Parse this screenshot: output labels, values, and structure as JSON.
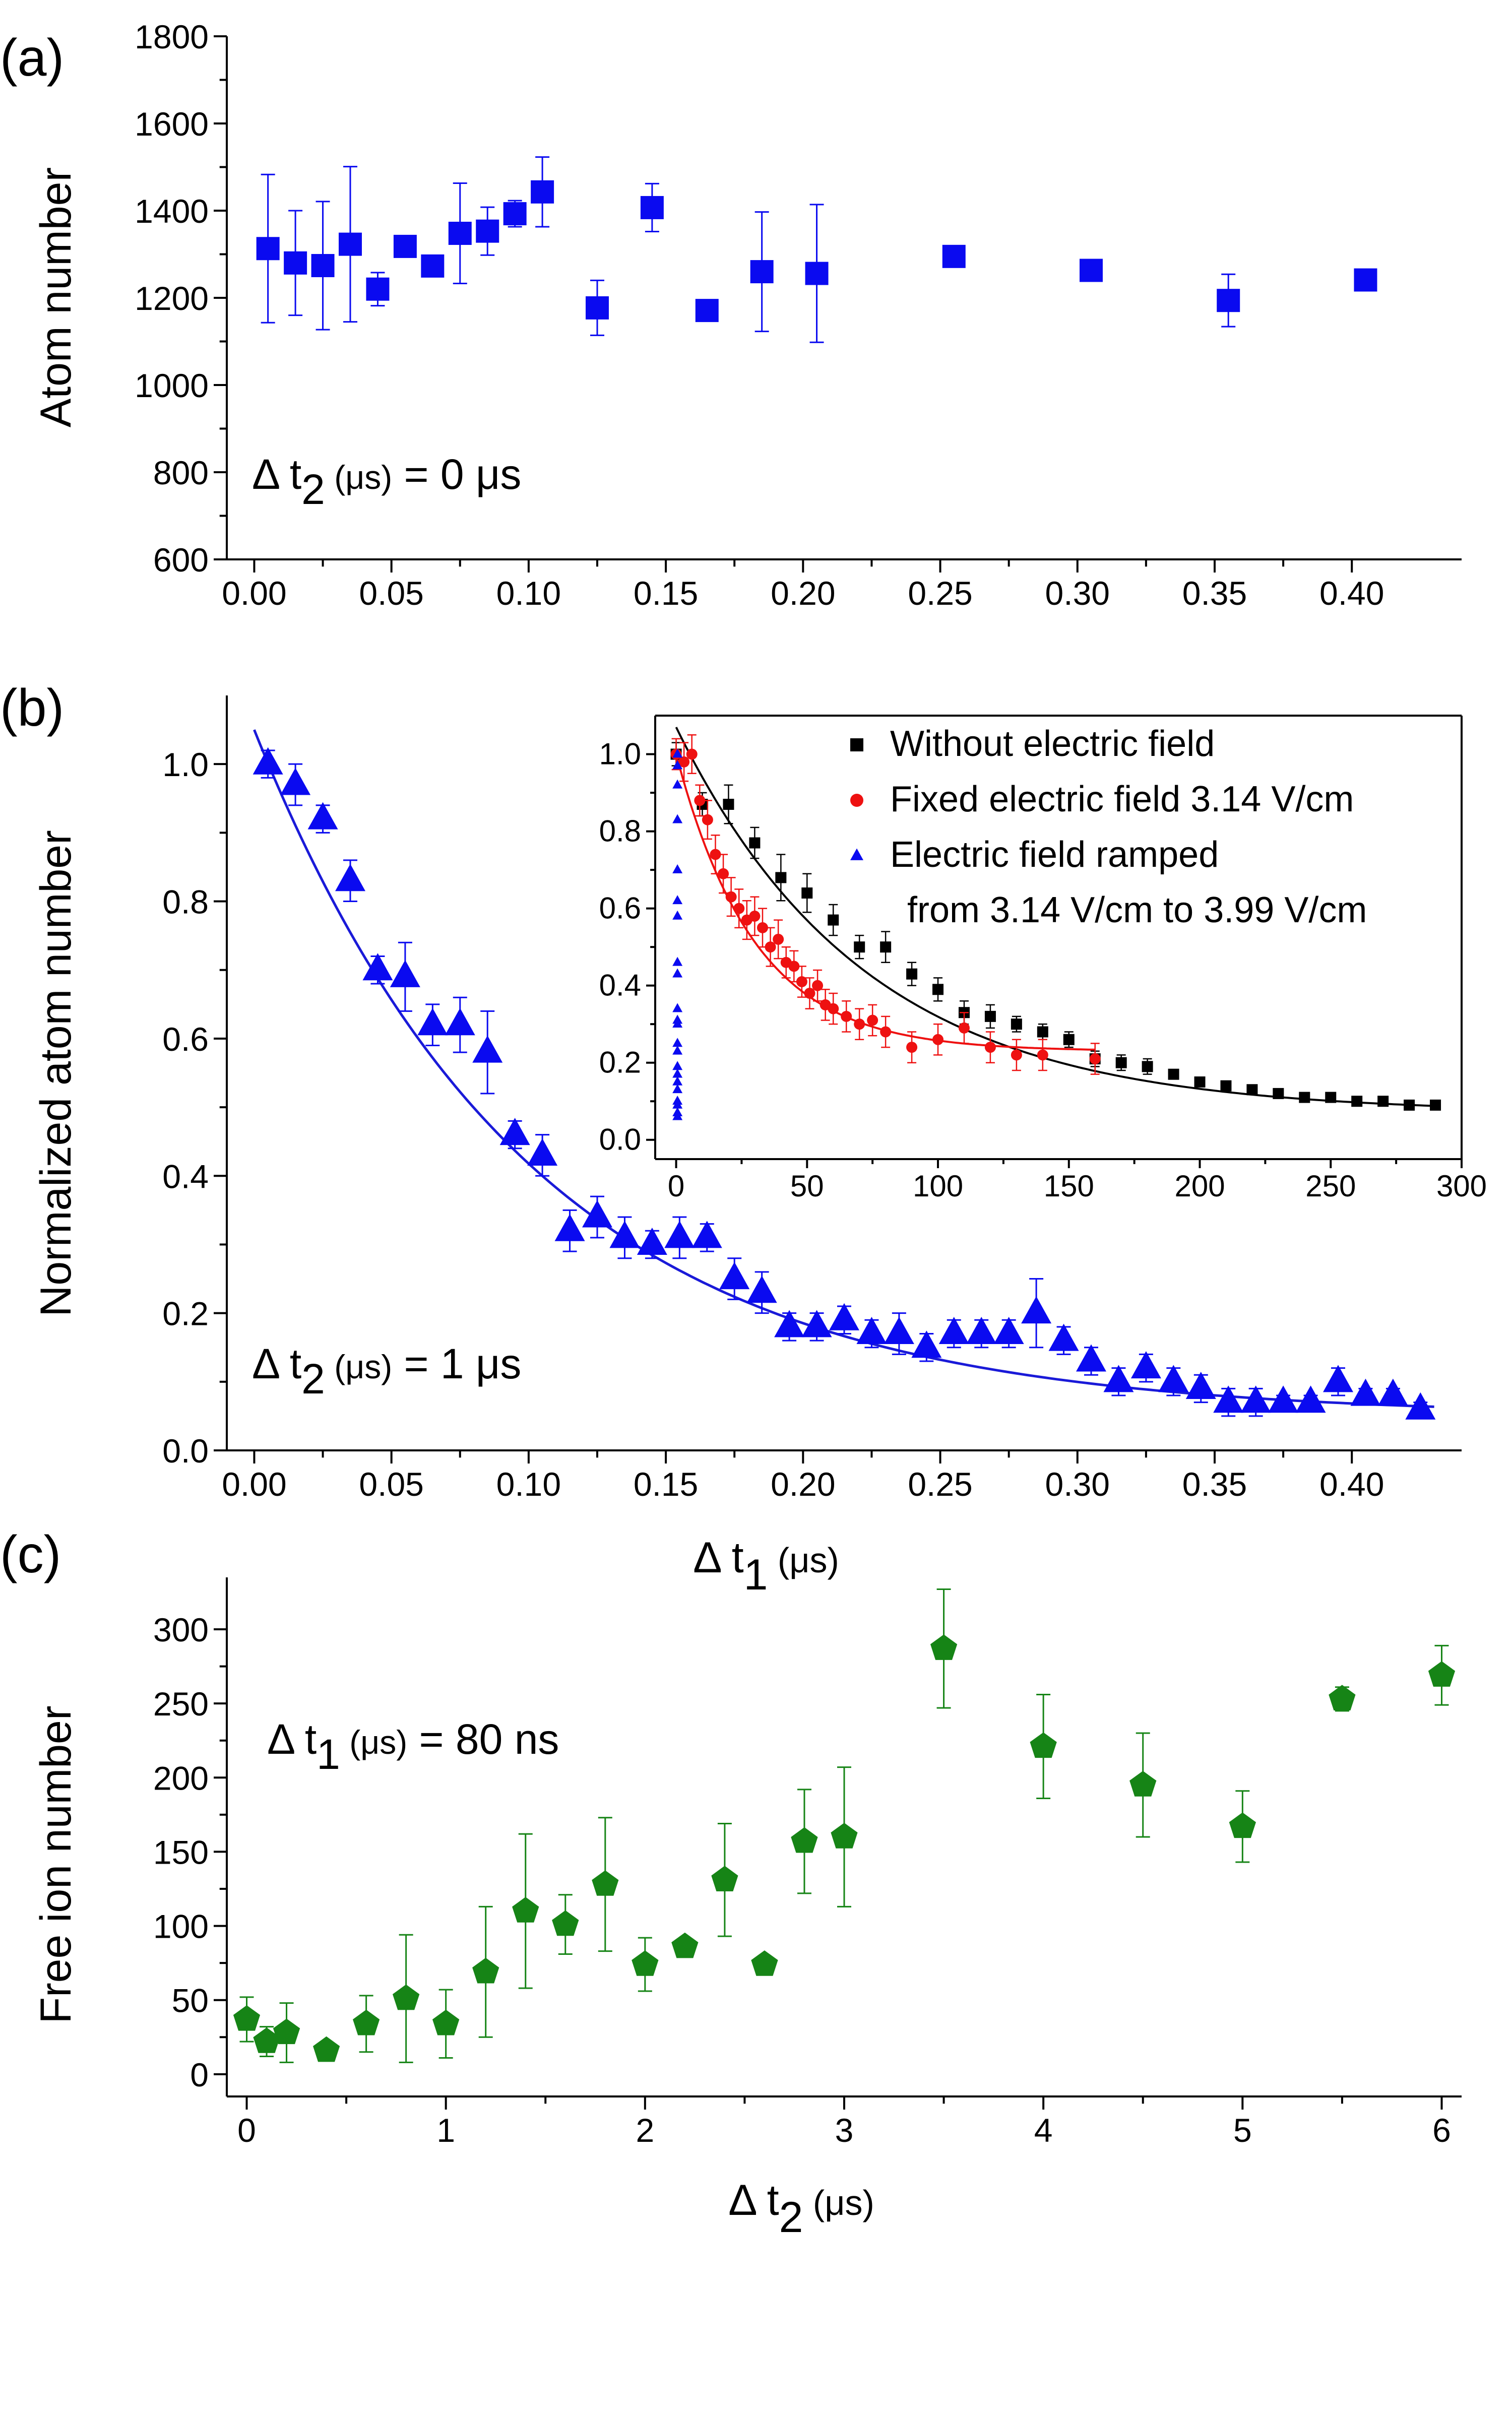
{
  "chart_data": [
    {
      "type": "scatter",
      "panel_label": "(a)",
      "ylabel": "Atom number",
      "xlabel": "",
      "xlim": [
        -0.01,
        0.44
      ],
      "ylim": [
        600,
        1800
      ],
      "x_ticks": [
        0.0,
        0.05,
        0.1,
        0.15,
        0.2,
        0.25,
        0.3,
        0.35,
        0.4
      ],
      "x_tick_labels": [
        "0.00",
        "0.05",
        "0.10",
        "0.15",
        "0.20",
        "0.25",
        "0.30",
        "0.35",
        "0.40"
      ],
      "y_ticks": [
        600,
        800,
        1000,
        1200,
        1400,
        1600,
        1800
      ],
      "y_tick_labels": [
        "600",
        "800",
        "1000",
        "1200",
        "1400",
        "1600",
        "1800"
      ],
      "annotation": {
        "prefix": "Δ t",
        "sub": "2",
        "unit": " (μs)",
        "value": " = 0 μs"
      },
      "series": [
        {
          "name": "Atom number",
          "marker": "square",
          "color": "#0a0af0",
          "x": [
            0.005,
            0.015,
            0.025,
            0.035,
            0.045,
            0.055,
            0.065,
            0.075,
            0.085,
            0.095,
            0.105,
            0.125,
            0.145,
            0.165,
            0.185,
            0.205,
            0.255,
            0.305,
            0.355,
            0.405
          ],
          "y": [
            1313,
            1280,
            1274,
            1323,
            1220,
            1318,
            1273,
            1348,
            1353,
            1393,
            1443,
            1177,
            1407,
            1171,
            1260,
            1256,
            1295,
            1263,
            1194,
            1241
          ],
          "err": [
            170,
            120,
            147,
            178,
            38,
            0,
            20,
            115,
            55,
            30,
            80,
            63,
            55,
            0,
            137,
            158,
            0,
            0,
            60,
            0
          ]
        }
      ]
    },
    {
      "type": "scatter",
      "panel_label": "(b)",
      "ylabel": "Normalized atom number",
      "xlabel_prefix": "Δ t",
      "xlabel_sub": "1",
      "xlabel_unit": " (μs)",
      "xlim": [
        -0.01,
        0.44
      ],
      "ylim": [
        0.0,
        1.1
      ],
      "x_ticks": [
        0.0,
        0.05,
        0.1,
        0.15,
        0.2,
        0.25,
        0.3,
        0.35,
        0.4
      ],
      "x_tick_labels": [
        "0.00",
        "0.05",
        "0.10",
        "0.15",
        "0.20",
        "0.25",
        "0.30",
        "0.35",
        "0.40"
      ],
      "y_ticks": [
        0.0,
        0.2,
        0.4,
        0.6,
        0.8,
        1.0
      ],
      "y_tick_labels": [
        "0.0",
        "0.2",
        "0.4",
        "0.6",
        "0.8",
        "1.0"
      ],
      "annotation": {
        "prefix": "Δ t",
        "sub": "2",
        "unit": " (μs)",
        "value": " = 1 μs"
      },
      "series": [
        {
          "name": "Normalized atom number",
          "marker": "triangle",
          "color": "#0a0af0",
          "x": [
            0.005,
            0.015,
            0.025,
            0.035,
            0.045,
            0.055,
            0.065,
            0.075,
            0.085,
            0.095,
            0.105,
            0.115,
            0.125,
            0.135,
            0.145,
            0.155,
            0.165,
            0.175,
            0.185,
            0.195,
            0.205,
            0.215,
            0.225,
            0.235,
            0.245,
            0.255,
            0.265,
            0.275,
            0.285,
            0.295,
            0.305,
            0.315,
            0.325,
            0.335,
            0.345,
            0.355,
            0.365,
            0.375,
            0.385,
            0.395,
            0.405,
            0.415,
            0.425
          ],
          "y": [
            1.0,
            0.97,
            0.92,
            0.83,
            0.7,
            0.69,
            0.62,
            0.62,
            0.58,
            0.46,
            0.43,
            0.32,
            0.34,
            0.31,
            0.3,
            0.31,
            0.31,
            0.25,
            0.23,
            0.18,
            0.18,
            0.19,
            0.17,
            0.17,
            0.15,
            0.17,
            0.17,
            0.17,
            0.2,
            0.16,
            0.13,
            0.1,
            0.12,
            0.1,
            0.09,
            0.07,
            0.07,
            0.07,
            0.07,
            0.1,
            0.08,
            0.08,
            0.06
          ],
          "err": [
            0.02,
            0.03,
            0.02,
            0.03,
            0.02,
            0.05,
            0.03,
            0.04,
            0.06,
            0.02,
            0.03,
            0.03,
            0.03,
            0.03,
            0.02,
            0.03,
            0.02,
            0.03,
            0.03,
            0.02,
            0.02,
            0.02,
            0.02,
            0.03,
            0.02,
            0.02,
            0.02,
            0.02,
            0.05,
            0.02,
            0.02,
            0.02,
            0.02,
            0.02,
            0.02,
            0.02,
            0.02,
            0.01,
            0.01,
            0.02,
            0.01,
            0.01,
            0.01
          ]
        }
      ],
      "fit": {
        "color": "#1a1ad8",
        "a": 1.0,
        "tau": 0.1,
        "c": 0.05,
        "x_range": [
          0.0,
          0.43
        ]
      },
      "inset": {
        "xlim": [
          -8,
          300
        ],
        "ylim": [
          -0.05,
          1.1
        ],
        "x_ticks": [
          0,
          50,
          100,
          150,
          200,
          250,
          300
        ],
        "x_tick_labels": [
          "0",
          "50",
          "100",
          "150",
          "200",
          "250",
          "300"
        ],
        "y_ticks": [
          0.0,
          0.2,
          0.4,
          0.6,
          0.8,
          1.0
        ],
        "y_tick_labels": [
          "0.0",
          "0.2",
          "0.4",
          "0.6",
          "0.8",
          "1.0"
        ],
        "legend": {
          "entries": [
            "Without electric field",
            "Fixed electric field 3.14 V/cm",
            "Electric field ramped"
          ],
          "continuation": "from 3.14 V/cm to 3.99 V/cm"
        },
        "series": [
          {
            "name": "Without electric field",
            "marker": "square",
            "color": "#000000",
            "x": [
              0,
              10,
              20,
              30,
              40,
              50,
              60,
              70,
              80,
              90,
              100,
              110,
              120,
              130,
              140,
              150,
              160,
              170,
              180,
              190,
              200,
              210,
              220,
              230,
              240,
              250,
              260,
              270,
              280,
              290
            ],
            "y": [
              1.0,
              0.87,
              0.87,
              0.77,
              0.68,
              0.64,
              0.57,
              0.5,
              0.5,
              0.43,
              0.39,
              0.33,
              0.32,
              0.3,
              0.28,
              0.26,
              0.21,
              0.2,
              0.19,
              0.17,
              0.15,
              0.14,
              0.13,
              0.12,
              0.11,
              0.11,
              0.1,
              0.1,
              0.09,
              0.09
            ],
            "err": [
              0.03,
              0.03,
              0.05,
              0.04,
              0.06,
              0.05,
              0.04,
              0.03,
              0.04,
              0.03,
              0.03,
              0.03,
              0.03,
              0.02,
              0.02,
              0.02,
              0.02,
              0.02,
              0.02,
              0.01,
              0.01,
              0.01,
              0.01,
              0.01,
              0.01,
              0.01,
              0.01,
              0.01,
              0.01,
              0.01
            ]
          },
          {
            "name": "Fixed electric field 3.14 V/cm",
            "marker": "circle",
            "color": "#ee1111",
            "x": [
              0,
              3,
              6,
              9,
              12,
              15,
              18,
              21,
              24,
              27,
              30,
              33,
              36,
              39,
              42,
              45,
              48,
              51,
              54,
              57,
              60,
              65,
              70,
              75,
              80,
              90,
              100,
              110,
              120,
              130,
              140,
              160
            ],
            "y": [
              1.0,
              0.98,
              1.0,
              0.88,
              0.83,
              0.74,
              0.69,
              0.63,
              0.6,
              0.57,
              0.58,
              0.55,
              0.5,
              0.52,
              0.46,
              0.45,
              0.41,
              0.38,
              0.4,
              0.35,
              0.34,
              0.32,
              0.3,
              0.31,
              0.28,
              0.24,
              0.26,
              0.29,
              0.24,
              0.22,
              0.22,
              0.21
            ],
            "err": [
              0.04,
              0.05,
              0.05,
              0.04,
              0.05,
              0.05,
              0.05,
              0.05,
              0.05,
              0.05,
              0.05,
              0.05,
              0.05,
              0.05,
              0.04,
              0.04,
              0.04,
              0.04,
              0.04,
              0.04,
              0.04,
              0.04,
              0.04,
              0.04,
              0.04,
              0.04,
              0.04,
              0.04,
              0.04,
              0.04,
              0.04,
              0.04
            ]
          },
          {
            "name": "Electric field ramped",
            "marker": "triangle",
            "color": "#0a0af0",
            "x": [
              0.5,
              0.5,
              0.5,
              0.5,
              0.5,
              0.5,
              0.5,
              0.5,
              0.5,
              0.5,
              0.5,
              0.5,
              0.5,
              0.5,
              0.5,
              0.5,
              0.5,
              0.5,
              0.5,
              0.5,
              0.5,
              0.5
            ],
            "y": [
              1.0,
              0.97,
              0.92,
              0.83,
              0.7,
              0.62,
              0.58,
              0.46,
              0.43,
              0.34,
              0.31,
              0.3,
              0.25,
              0.23,
              0.19,
              0.17,
              0.15,
              0.13,
              0.1,
              0.09,
              0.07,
              0.06
            ],
            "err": [
              0,
              0,
              0,
              0,
              0,
              0,
              0,
              0,
              0,
              0,
              0,
              0,
              0,
              0,
              0,
              0,
              0,
              0,
              0,
              0,
              0,
              0
            ]
          }
        ],
        "fits": [
          {
            "color": "#000000",
            "a": 1.0,
            "tau": 72,
            "c": 0.07,
            "x_range": [
              0,
              290
            ]
          },
          {
            "color": "#ee1111",
            "a": 0.77,
            "tau": 30,
            "c": 0.23,
            "x_range": [
              0,
              160
            ]
          }
        ]
      }
    },
    {
      "type": "scatter",
      "panel_label": "(c)",
      "ylabel": "Free ion number",
      "xlabel_prefix": "Δ t",
      "xlabel_sub": "2",
      "xlabel_unit": " (μs)",
      "xlim": [
        -0.1,
        6.1
      ],
      "ylim": [
        -15,
        335
      ],
      "x_ticks": [
        0,
        1,
        2,
        3,
        4,
        5,
        6
      ],
      "x_tick_labels": [
        "0",
        "1",
        "2",
        "3",
        "4",
        "5",
        "6"
      ],
      "y_ticks": [
        0,
        50,
        100,
        150,
        200,
        250,
        300
      ],
      "y_tick_labels": [
        "0",
        "50",
        "100",
        "150",
        "200",
        "250",
        "300"
      ],
      "annotation": {
        "prefix": "Δ t",
        "sub": "1",
        "unit": " (μs)",
        "value": " = 80 ns"
      },
      "series": [
        {
          "name": "Free ion number",
          "marker": "pentagon",
          "color": "#168416",
          "x": [
            0.0,
            0.1,
            0.2,
            0.4,
            0.6,
            0.8,
            1.0,
            1.2,
            1.4,
            1.6,
            1.8,
            2.0,
            2.2,
            2.4,
            2.6,
            2.8,
            3.0,
            3.5,
            4.0,
            4.5,
            5.0,
            5.5,
            6.0
          ],
          "y": [
            37,
            22,
            28,
            16,
            34,
            51,
            34,
            69,
            110,
            101,
            128,
            74,
            86,
            131,
            74,
            157,
            160,
            287,
            221,
            195,
            167,
            253,
            269
          ],
          "err": [
            15,
            10,
            20,
            5,
            19,
            43,
            23,
            44,
            52,
            20,
            45,
            18,
            0,
            38,
            0,
            35,
            47,
            40,
            35,
            35,
            24,
            8,
            20
          ]
        }
      ]
    }
  ]
}
